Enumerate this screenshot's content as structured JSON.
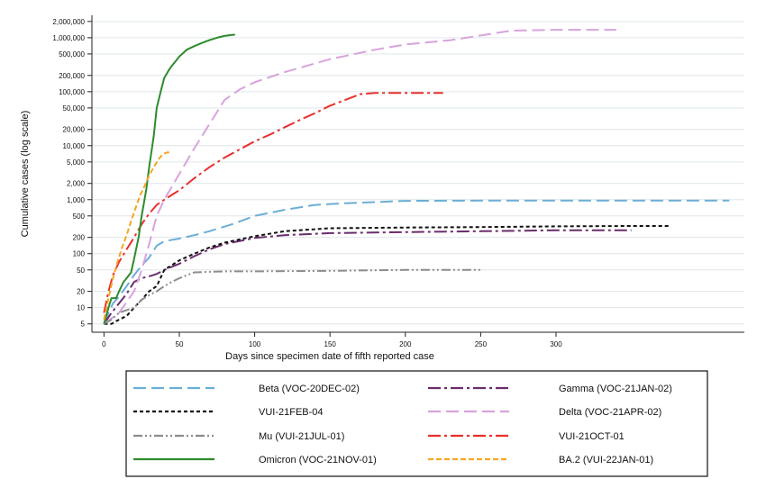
{
  "chart_data": {
    "type": "line",
    "title": "",
    "xlabel": "Days since specimen date of fifth reported case",
    "ylabel": "Cumulative cases (log scale)",
    "xlim": [
      -8,
      425
    ],
    "ylim": [
      3.5,
      2600000
    ],
    "log_y": true,
    "grid": "horizontal",
    "legend_position": "bottom",
    "x_ticks": [
      0,
      50,
      100,
      150,
      200,
      250,
      300
    ],
    "y_ticks": [
      5,
      10,
      20,
      50,
      100,
      200,
      500,
      1000,
      2000,
      5000,
      10000,
      20000,
      50000,
      100000,
      200000,
      500000,
      1000000,
      2000000
    ],
    "y_tick_labels": [
      "5",
      "10",
      "20",
      "50",
      "100",
      "200",
      "500",
      "1,000",
      "2,000",
      "5,000",
      "10,000",
      "20,000",
      "50,000",
      "100,000",
      "200,000",
      "500,000",
      "1,000,000",
      "2,000,000"
    ],
    "series": [
      {
        "name": "Beta (VOC-20DEC-02)",
        "color": "#6aaed6",
        "dash": "long-dash",
        "x": [
          0,
          3,
          6,
          10,
          15,
          20,
          25,
          30,
          35,
          40,
          50,
          60,
          70,
          85,
          100,
          120,
          140,
          160,
          180,
          200,
          250,
          300,
          350,
          415
        ],
        "y": [
          5,
          8,
          12,
          16,
          25,
          40,
          60,
          85,
          140,
          170,
          190,
          220,
          260,
          350,
          500,
          650,
          800,
          860,
          900,
          950,
          960,
          960,
          960,
          960
        ]
      },
      {
        "name": "Gamma (VOC-21JAN-02)",
        "color": "#6b2c6b",
        "dash": "long-dash-dot",
        "x": [
          0,
          5,
          10,
          15,
          20,
          25,
          30,
          35,
          40,
          50,
          60,
          70,
          80,
          100,
          120,
          150,
          200,
          250,
          300,
          350
        ],
        "y": [
          5,
          8,
          12,
          18,
          30,
          35,
          38,
          42,
          50,
          65,
          90,
          120,
          150,
          195,
          220,
          240,
          250,
          260,
          270,
          270
        ]
      },
      {
        "name": "VUI-21FEB-04",
        "color": "#111111",
        "dash": "short-dash",
        "x": [
          0,
          5,
          10,
          15,
          20,
          25,
          30,
          35,
          40,
          50,
          60,
          70,
          80,
          100,
          120,
          150,
          200,
          250,
          300,
          350,
          375
        ],
        "y": [
          5,
          5,
          6,
          7,
          10,
          14,
          20,
          25,
          50,
          75,
          100,
          130,
          160,
          210,
          260,
          295,
          305,
          310,
          320,
          325,
          325
        ]
      },
      {
        "name": "Delta (VOC-21APR-02)",
        "color": "#d8a3dc",
        "dash": "long-dash",
        "x": [
          0,
          10,
          20,
          25,
          30,
          35,
          40,
          50,
          60,
          70,
          80,
          90,
          100,
          120,
          150,
          180,
          200,
          230,
          250,
          270,
          300,
          320,
          340
        ],
        "y": [
          5,
          8,
          20,
          50,
          150,
          500,
          1000,
          3000,
          9000,
          25000,
          70000,
          110000,
          150000,
          230000,
          400000,
          600000,
          750000,
          900000,
          1100000,
          1350000,
          1400000,
          1400000,
          1400000
        ]
      },
      {
        "name": "Mu (VUI-21JUL-01)",
        "color": "#8c8c8c",
        "dash": "dash-dot-dot",
        "x": [
          0,
          5,
          10,
          15,
          20,
          25,
          30,
          35,
          40,
          45,
          50,
          55,
          60,
          70,
          80,
          100,
          150,
          200,
          250
        ],
        "y": [
          5,
          6,
          8,
          9,
          10,
          14,
          17,
          20,
          25,
          30,
          35,
          40,
          45,
          46,
          47,
          47,
          48,
          50,
          50
        ]
      },
      {
        "name": "VUI-21OCT-01",
        "color": "#e8302d",
        "dash": "long-dash-dot",
        "x": [
          0,
          3,
          6,
          10,
          15,
          20,
          25,
          30,
          35,
          40,
          50,
          60,
          70,
          80,
          90,
          100,
          110,
          120,
          130,
          140,
          150,
          160,
          170,
          180,
          190,
          200,
          210,
          225
        ],
        "y": [
          8,
          20,
          40,
          70,
          120,
          200,
          350,
          550,
          800,
          1000,
          1500,
          2500,
          4000,
          6000,
          8500,
          12000,
          16000,
          22000,
          30000,
          40000,
          55000,
          70000,
          90000,
          95000,
          95000,
          95000,
          95000,
          95000
        ]
      },
      {
        "name": "Omicron (VOC-21NOV-01)",
        "color": "#2e8b2e",
        "dash": "solid",
        "x": [
          0,
          3,
          5,
          8,
          10,
          13,
          15,
          18,
          20,
          23,
          25,
          28,
          30,
          33,
          35,
          38,
          40,
          43,
          45,
          48,
          50,
          55,
          60,
          65,
          70,
          75,
          80,
          85,
          87
        ],
        "y": [
          5,
          10,
          15,
          15,
          20,
          30,
          35,
          45,
          80,
          200,
          500,
          1500,
          4000,
          15000,
          50000,
          110000,
          180000,
          250000,
          300000,
          380000,
          450000,
          600000,
          700000,
          800000,
          900000,
          1000000,
          1080000,
          1130000,
          1140000
        ]
      },
      {
        "name": "BA.2 (VUI-22JAN-01)",
        "color": "#f5a623",
        "dash": "short-long-dash",
        "x": [
          0,
          3,
          6,
          9,
          12,
          15,
          18,
          21,
          24,
          27,
          30,
          33,
          36,
          39,
          42,
          45
        ],
        "y": [
          6,
          15,
          35,
          70,
          130,
          220,
          400,
          700,
          1200,
          1800,
          2800,
          4000,
          5500,
          7000,
          7500,
          7500
        ]
      }
    ]
  }
}
